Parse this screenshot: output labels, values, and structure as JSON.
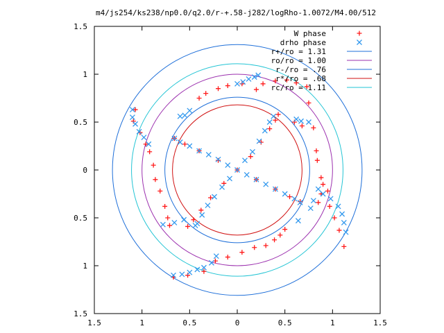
{
  "chart_data": {
    "type": "scatter",
    "title": "m4/js254/ks238/np0.0/q2.0/r-+.58-j282/logRho-1.0072/M4.00/512",
    "xlabel": "",
    "ylabel": "",
    "xlim": [
      -1.5,
      1.5
    ],
    "ylim": [
      -1.5,
      1.5
    ],
    "grid": false,
    "legend_position": "top-right",
    "x_ticks": [
      {
        "value": -1.5,
        "label": "1.5"
      },
      {
        "value": -1.0,
        "label": "1"
      },
      {
        "value": -0.5,
        "label": "0.5"
      },
      {
        "value": 0,
        "label": "0"
      },
      {
        "value": 0.5,
        "label": "0.5"
      },
      {
        "value": 1.0,
        "label": "1"
      },
      {
        "value": 1.5,
        "label": "1.5"
      }
    ],
    "y_ticks": [
      {
        "value": 1.5,
        "label": "1.5"
      },
      {
        "value": 1.0,
        "label": "1"
      },
      {
        "value": 0.5,
        "label": "0.5"
      },
      {
        "value": 0,
        "label": "0"
      },
      {
        "value": -0.5,
        "label": "0.5"
      },
      {
        "value": -1.0,
        "label": "1"
      },
      {
        "value": -1.5,
        "label": "1.5"
      }
    ],
    "circles": [
      {
        "label": "r+/ro = 1.31",
        "radius": 1.31,
        "color": "#1e6fd9"
      },
      {
        "label": "ro/ro = 1.00",
        "radius": 1.0,
        "color": "#9b2fae"
      },
      {
        "label": "r-/ro = .76",
        "radius": 0.76,
        "color": "#1e6fd9"
      },
      {
        "label": "r*/ro = .68",
        "radius": 0.68,
        "color": "#d01010"
      },
      {
        "label": "rc/ro = 1.11",
        "radius": 1.11,
        "color": "#22c4d4"
      }
    ],
    "series": [
      {
        "name": "W phase",
        "marker": "plus",
        "color": "#ff1a1a",
        "points": [
          [
            0.0,
            0.0
          ],
          [
            -0.14,
            -0.14
          ],
          [
            -0.28,
            -0.29
          ],
          [
            -0.38,
            -0.42
          ],
          [
            -0.46,
            -0.52
          ],
          [
            -0.52,
            -0.59
          ],
          [
            0.14,
            0.14
          ],
          [
            0.25,
            0.29
          ],
          [
            0.34,
            0.43
          ],
          [
            0.4,
            0.52
          ],
          [
            0.43,
            0.58
          ],
          [
            -0.2,
            0.1
          ],
          [
            -0.4,
            0.2
          ],
          [
            -0.55,
            0.27
          ],
          [
            -0.66,
            0.33
          ],
          [
            0.2,
            -0.1
          ],
          [
            0.4,
            -0.2
          ],
          [
            0.55,
            -0.28
          ],
          [
            0.66,
            -0.33
          ],
          [
            -1.07,
            0.63
          ],
          [
            -1.09,
            0.51
          ],
          [
            -1.02,
            0.39
          ],
          [
            -0.96,
            0.27
          ],
          [
            -0.92,
            0.19
          ],
          [
            -0.88,
            0.05
          ],
          [
            -0.86,
            -0.1
          ],
          [
            -0.81,
            -0.22
          ],
          [
            -0.76,
            -0.38
          ],
          [
            -0.73,
            -0.5
          ],
          [
            -0.71,
            -0.58
          ],
          [
            -0.67,
            -1.12
          ],
          [
            -0.52,
            -1.1
          ],
          [
            -0.35,
            -1.06
          ],
          [
            -0.23,
            -0.95
          ],
          [
            -0.1,
            -0.91
          ],
          [
            0.05,
            -0.86
          ],
          [
            0.18,
            -0.81
          ],
          [
            0.3,
            -0.79
          ],
          [
            0.39,
            -0.73
          ],
          [
            0.45,
            -0.68
          ],
          [
            0.5,
            -0.62
          ],
          [
            0.2,
            0.84
          ],
          [
            0.27,
            0.9
          ],
          [
            0.4,
            0.93
          ],
          [
            0.52,
            0.94
          ],
          [
            0.62,
            0.91
          ],
          [
            0.73,
            0.87
          ],
          [
            0.75,
            0.7
          ],
          [
            -0.4,
            0.75
          ],
          [
            -0.33,
            0.8
          ],
          [
            -0.2,
            0.85
          ],
          [
            -0.1,
            0.88
          ],
          [
            0.05,
            0.9
          ],
          [
            0.6,
            0.5
          ],
          [
            0.68,
            0.46
          ],
          [
            0.8,
            0.44
          ],
          [
            0.83,
            0.2
          ],
          [
            0.84,
            0.1
          ],
          [
            0.88,
            -0.08
          ],
          [
            0.9,
            -0.15
          ],
          [
            0.88,
            -0.25
          ],
          [
            0.85,
            -0.34
          ],
          [
            0.95,
            -0.22
          ],
          [
            0.97,
            -0.38
          ],
          [
            1.02,
            -0.5
          ],
          [
            1.07,
            -0.63
          ],
          [
            1.12,
            -0.8
          ]
        ]
      },
      {
        "name": "drho phase",
        "marker": "cross",
        "color": "#3399ee",
        "points": [
          [
            0.0,
            0.0
          ],
          [
            -0.08,
            -0.09
          ],
          [
            -0.16,
            -0.18
          ],
          [
            -0.24,
            -0.28
          ],
          [
            -0.31,
            -0.37
          ],
          [
            -0.37,
            -0.47
          ],
          [
            -0.42,
            -0.56
          ],
          [
            -0.44,
            -0.58
          ],
          [
            0.08,
            0.1
          ],
          [
            0.16,
            0.19
          ],
          [
            0.23,
            0.3
          ],
          [
            0.29,
            0.41
          ],
          [
            0.34,
            0.5
          ],
          [
            0.38,
            0.56
          ],
          [
            -0.1,
            0.05
          ],
          [
            -0.2,
            0.11
          ],
          [
            -0.3,
            0.16
          ],
          [
            -0.4,
            0.2
          ],
          [
            -0.5,
            0.25
          ],
          [
            -0.6,
            0.29
          ],
          [
            -0.66,
            0.33
          ],
          [
            0.1,
            -0.05
          ],
          [
            0.2,
            -0.1
          ],
          [
            0.3,
            -0.15
          ],
          [
            0.4,
            -0.2
          ],
          [
            0.5,
            -0.25
          ],
          [
            0.6,
            -0.3
          ],
          [
            0.66,
            -0.34
          ],
          [
            -1.1,
            0.63
          ],
          [
            -1.1,
            0.55
          ],
          [
            -1.07,
            0.48
          ],
          [
            -1.03,
            0.4
          ],
          [
            -0.98,
            0.34
          ],
          [
            -0.93,
            0.27
          ],
          [
            -0.67,
            -1.1
          ],
          [
            -0.58,
            -1.09
          ],
          [
            -0.5,
            -1.07
          ],
          [
            -0.42,
            -1.04
          ],
          [
            -0.35,
            -1.02
          ],
          [
            -0.27,
            -0.97
          ],
          [
            -0.22,
            -0.9
          ],
          [
            0.0,
            0.9
          ],
          [
            0.06,
            0.92
          ],
          [
            0.12,
            0.95
          ],
          [
            0.18,
            0.97
          ],
          [
            0.22,
            0.99
          ],
          [
            0.62,
            0.53
          ],
          [
            0.67,
            0.51
          ],
          [
            0.75,
            0.5
          ],
          [
            0.85,
            -0.2
          ],
          [
            0.9,
            -0.25
          ],
          [
            0.98,
            -0.3
          ],
          [
            1.06,
            -0.38
          ],
          [
            1.1,
            -0.46
          ],
          [
            1.12,
            -0.55
          ],
          [
            1.14,
            -0.65
          ],
          [
            0.8,
            -0.32
          ],
          [
            0.77,
            -0.4
          ],
          [
            0.64,
            -0.53
          ],
          [
            -0.78,
            -0.57
          ],
          [
            -0.66,
            -0.55
          ],
          [
            -0.56,
            -0.52
          ],
          [
            -0.5,
            0.62
          ],
          [
            -0.55,
            0.57
          ],
          [
            -0.6,
            0.56
          ]
        ]
      }
    ]
  }
}
